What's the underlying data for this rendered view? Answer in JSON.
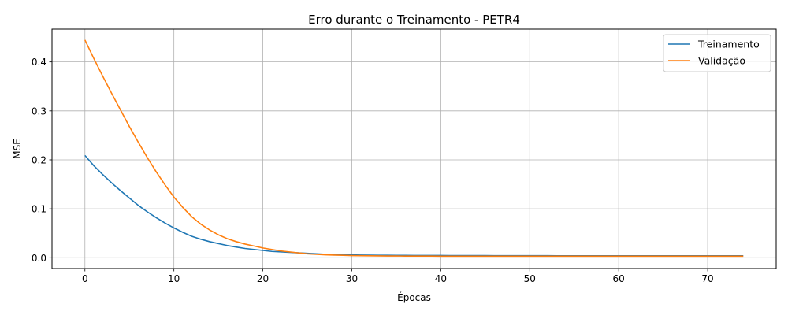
{
  "chart_data": {
    "type": "line",
    "title": "Erro durante o Treinamento - PETR4",
    "xlabel": "Épocas",
    "ylabel": "MSE",
    "xlim": [
      -3.7,
      77.7
    ],
    "ylim": [
      -0.022,
      0.467
    ],
    "xticks": [
      0,
      10,
      20,
      30,
      40,
      50,
      60,
      70
    ],
    "yticks": [
      0.0,
      0.1,
      0.2,
      0.3,
      0.4
    ],
    "ytick_labels": [
      "0.0",
      "0.1",
      "0.2",
      "0.3",
      "0.4"
    ],
    "grid": true,
    "legend_position": "top-right",
    "x": [
      0,
      1,
      2,
      3,
      4,
      5,
      6,
      7,
      8,
      9,
      10,
      11,
      12,
      13,
      14,
      15,
      16,
      17,
      18,
      19,
      20,
      21,
      22,
      23,
      24,
      25,
      26,
      27,
      28,
      29,
      30,
      31,
      32,
      33,
      34,
      35,
      36,
      37,
      38,
      39,
      40,
      41,
      42,
      43,
      44,
      45,
      46,
      47,
      48,
      49,
      50,
      51,
      52,
      53,
      54,
      55,
      56,
      57,
      58,
      59,
      60,
      61,
      62,
      63,
      64,
      65,
      66,
      67,
      68,
      69,
      70,
      71,
      72,
      73,
      74
    ],
    "series": [
      {
        "name": "Treinamento",
        "color": "#1f77b4",
        "values": [
          0.209,
          0.188,
          0.17,
          0.153,
          0.137,
          0.122,
          0.107,
          0.094,
          0.082,
          0.071,
          0.061,
          0.052,
          0.044,
          0.038,
          0.033,
          0.029,
          0.025,
          0.022,
          0.019,
          0.017,
          0.015,
          0.013,
          0.012,
          0.011,
          0.01,
          0.009,
          0.008,
          0.007,
          0.0065,
          0.006,
          0.0058,
          0.0055,
          0.0053,
          0.0051,
          0.005,
          0.0049,
          0.0048,
          0.0047,
          0.0047,
          0.0046,
          0.0046,
          0.0045,
          0.0045,
          0.0044,
          0.0044,
          0.0044,
          0.0043,
          0.0043,
          0.0043,
          0.0042,
          0.0042,
          0.0042,
          0.0042,
          0.0041,
          0.0041,
          0.0041,
          0.0041,
          0.0041,
          0.004,
          0.004,
          0.004,
          0.004,
          0.004,
          0.004,
          0.004,
          0.004,
          0.004,
          0.004,
          0.004,
          0.004,
          0.004,
          0.004,
          0.004,
          0.004,
          0.004
        ]
      },
      {
        "name": "Validação",
        "color": "#ff7f0e",
        "values": [
          0.445,
          0.407,
          0.371,
          0.336,
          0.302,
          0.268,
          0.236,
          0.205,
          0.176,
          0.149,
          0.124,
          0.103,
          0.084,
          0.069,
          0.057,
          0.047,
          0.039,
          0.033,
          0.028,
          0.024,
          0.02,
          0.017,
          0.014,
          0.012,
          0.01,
          0.008,
          0.007,
          0.006,
          0.0055,
          0.005,
          0.0045,
          0.0042,
          0.004,
          0.0038,
          0.0037,
          0.0036,
          0.0035,
          0.0035,
          0.0034,
          0.0034,
          0.0033,
          0.0033,
          0.0033,
          0.0033,
          0.0032,
          0.0032,
          0.0032,
          0.0032,
          0.0032,
          0.0032,
          0.0032,
          0.0032,
          0.0032,
          0.0032,
          0.0032,
          0.0032,
          0.0032,
          0.0032,
          0.0032,
          0.0032,
          0.0032,
          0.0032,
          0.0032,
          0.0032,
          0.0032,
          0.0032,
          0.0032,
          0.0032,
          0.0032,
          0.0032,
          0.0032,
          0.0032,
          0.0032,
          0.0032,
          0.0032
        ]
      }
    ]
  }
}
